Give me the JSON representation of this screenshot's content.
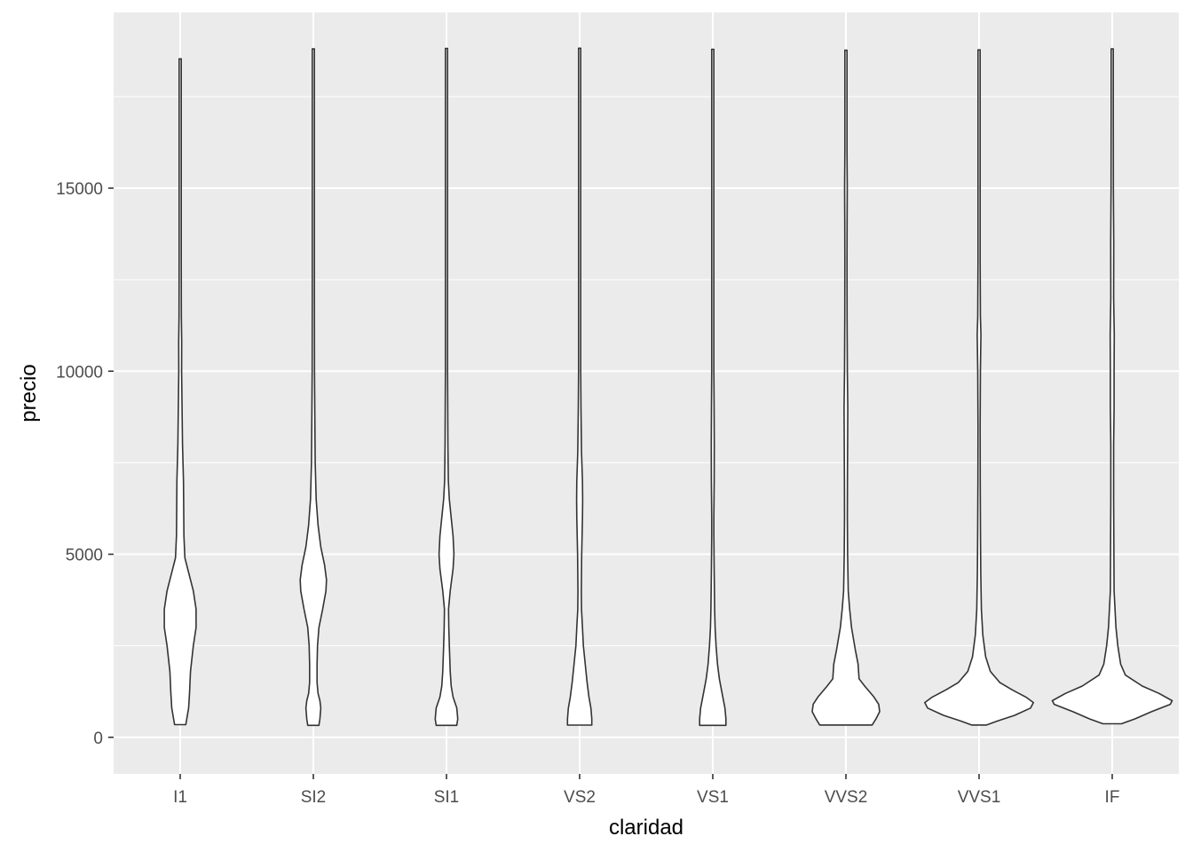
{
  "chart_data": {
    "type": "violin",
    "xlabel": "claridad",
    "ylabel": "precio",
    "ylim": [
      -1000,
      19800
    ],
    "yticks": [
      0,
      5000,
      10000,
      15000
    ],
    "ytick_labels": [
      "0",
      "5000",
      "10000",
      "15000"
    ],
    "grid": true,
    "legend": "none",
    "colors": {
      "panel": "#ebebeb",
      "grid": "#ffffff",
      "violin_fill": "#ffffff",
      "violin_stroke": "#333333"
    },
    "categories": [
      "I1",
      "SI2",
      "SI1",
      "VS2",
      "VS1",
      "VVS2",
      "VVS1",
      "IF"
    ],
    "series": [
      {
        "category": "I1",
        "min": 345,
        "max": 18531,
        "density": [
          [
            345,
            6
          ],
          [
            500,
            7
          ],
          [
            800,
            9
          ],
          [
            1200,
            10
          ],
          [
            1800,
            11
          ],
          [
            2500,
            14
          ],
          [
            3000,
            17
          ],
          [
            3500,
            17
          ],
          [
            4000,
            14
          ],
          [
            4500,
            9
          ],
          [
            4900,
            5
          ],
          [
            5500,
            4
          ],
          [
            7000,
            3.5
          ],
          [
            8000,
            2.5
          ],
          [
            9000,
            2
          ],
          [
            10000,
            1.5
          ],
          [
            10800,
            1.6
          ],
          [
            11500,
            1.2
          ],
          [
            13000,
            1
          ],
          [
            15000,
            0.8
          ],
          [
            17000,
            0.8
          ],
          [
            18531,
            0.6
          ]
        ]
      },
      {
        "category": "SI2",
        "min": 326,
        "max": 18804,
        "density": [
          [
            326,
            6
          ],
          [
            500,
            7
          ],
          [
            800,
            8
          ],
          [
            1000,
            7
          ],
          [
            1200,
            5
          ],
          [
            1500,
            4
          ],
          [
            2000,
            4
          ],
          [
            2500,
            4.5
          ],
          [
            3000,
            6
          ],
          [
            3500,
            10
          ],
          [
            4000,
            13.5
          ],
          [
            4300,
            14
          ],
          [
            4700,
            12
          ],
          [
            5200,
            8
          ],
          [
            5800,
            5
          ],
          [
            6500,
            3
          ],
          [
            7500,
            2
          ],
          [
            9000,
            1.5
          ],
          [
            10000,
            1.2
          ],
          [
            12000,
            1
          ],
          [
            15000,
            0.9
          ],
          [
            18804,
            0.7
          ]
        ]
      },
      {
        "category": "SI1",
        "min": 326,
        "max": 18818,
        "density": [
          [
            326,
            11
          ],
          [
            500,
            12
          ],
          [
            800,
            11
          ],
          [
            1100,
            7
          ],
          [
            1400,
            5
          ],
          [
            1800,
            4
          ],
          [
            2500,
            3
          ],
          [
            3000,
            2.5
          ],
          [
            3500,
            2.2
          ],
          [
            4000,
            4
          ],
          [
            4600,
            7
          ],
          [
            5000,
            8
          ],
          [
            5500,
            7
          ],
          [
            6000,
            5
          ],
          [
            6500,
            3
          ],
          [
            7000,
            2
          ],
          [
            8000,
            1.5
          ],
          [
            10000,
            1
          ],
          [
            12000,
            0.8
          ],
          [
            13000,
            0.6
          ],
          [
            15000,
            0.6
          ],
          [
            18818,
            0.6
          ]
        ]
      },
      {
        "category": "VS2",
        "min": 334,
        "max": 18823,
        "density": [
          [
            334,
            13
          ],
          [
            500,
            13
          ],
          [
            800,
            12
          ],
          [
            1100,
            10
          ],
          [
            1500,
            8
          ],
          [
            2000,
            6
          ],
          [
            2500,
            4
          ],
          [
            3000,
            3
          ],
          [
            3500,
            2
          ],
          [
            4000,
            1.8
          ],
          [
            5000,
            2.2
          ],
          [
            6000,
            3
          ],
          [
            6500,
            3.2
          ],
          [
            7000,
            3
          ],
          [
            7800,
            2
          ],
          [
            9000,
            1.4
          ],
          [
            10000,
            1
          ],
          [
            12000,
            0.9
          ],
          [
            14000,
            0.8
          ],
          [
            17000,
            0.7
          ],
          [
            18823,
            0.6
          ]
        ]
      },
      {
        "category": "VS1",
        "min": 327,
        "max": 18795,
        "density": [
          [
            327,
            14
          ],
          [
            500,
            14
          ],
          [
            800,
            13
          ],
          [
            1200,
            10
          ],
          [
            1600,
            7
          ],
          [
            2000,
            5
          ],
          [
            2500,
            3.5
          ],
          [
            3000,
            2.5
          ],
          [
            3500,
            2
          ],
          [
            4500,
            1.5
          ],
          [
            5500,
            1
          ],
          [
            6000,
            1
          ],
          [
            7000,
            1.5
          ],
          [
            8000,
            1.6
          ],
          [
            9000,
            1.4
          ],
          [
            10000,
            1
          ],
          [
            11500,
            0.8
          ],
          [
            13000,
            0.6
          ],
          [
            15000,
            0.6
          ],
          [
            18795,
            0.6
          ]
        ]
      },
      {
        "category": "VVS2",
        "min": 336,
        "max": 18768,
        "density": [
          [
            336,
            28
          ],
          [
            500,
            32
          ],
          [
            700,
            36
          ],
          [
            900,
            35
          ],
          [
            1100,
            30
          ],
          [
            1400,
            20
          ],
          [
            1600,
            14
          ],
          [
            2000,
            13
          ],
          [
            2400,
            10
          ],
          [
            3000,
            6
          ],
          [
            3500,
            4
          ],
          [
            4000,
            2.5
          ],
          [
            5000,
            1.8
          ],
          [
            6000,
            1.5
          ],
          [
            7000,
            1.6
          ],
          [
            8000,
            1.8
          ],
          [
            9000,
            2
          ],
          [
            10000,
            1.5
          ],
          [
            11500,
            1.2
          ],
          [
            13000,
            1
          ],
          [
            14000,
            1.2
          ],
          [
            15000,
            1.4
          ],
          [
            16000,
            0.8
          ],
          [
            18768,
            0.6
          ]
        ]
      },
      {
        "category": "VVS1",
        "min": 336,
        "max": 18777,
        "density": [
          [
            336,
            8
          ],
          [
            450,
            20
          ],
          [
            600,
            38
          ],
          [
            800,
            55
          ],
          [
            950,
            58
          ],
          [
            1100,
            50
          ],
          [
            1300,
            35
          ],
          [
            1500,
            22
          ],
          [
            1800,
            12
          ],
          [
            2200,
            7
          ],
          [
            2800,
            4
          ],
          [
            3500,
            2.5
          ],
          [
            4500,
            1.8
          ],
          [
            5500,
            1.5
          ],
          [
            7000,
            1.2
          ],
          [
            8500,
            1
          ],
          [
            10000,
            1.4
          ],
          [
            11000,
            2
          ],
          [
            11500,
            1.4
          ],
          [
            13000,
            1
          ],
          [
            15000,
            0.8
          ],
          [
            18777,
            0.6
          ]
        ]
      },
      {
        "category": "IF",
        "min": 369,
        "max": 18806,
        "density": [
          [
            369,
            10
          ],
          [
            500,
            24
          ],
          [
            700,
            42
          ],
          [
            900,
            62
          ],
          [
            1000,
            64
          ],
          [
            1200,
            50
          ],
          [
            1400,
            32
          ],
          [
            1700,
            14
          ],
          [
            2000,
            9
          ],
          [
            2500,
            6
          ],
          [
            3000,
            4
          ],
          [
            4000,
            2
          ],
          [
            5000,
            1.8
          ],
          [
            6500,
            1.5
          ],
          [
            8000,
            1.5
          ],
          [
            9000,
            2
          ],
          [
            10000,
            2
          ],
          [
            11000,
            2.2
          ],
          [
            12000,
            1.5
          ],
          [
            13500,
            1.6
          ],
          [
            15000,
            1.2
          ],
          [
            17000,
            1
          ],
          [
            18806,
            0.8
          ]
        ]
      }
    ]
  }
}
